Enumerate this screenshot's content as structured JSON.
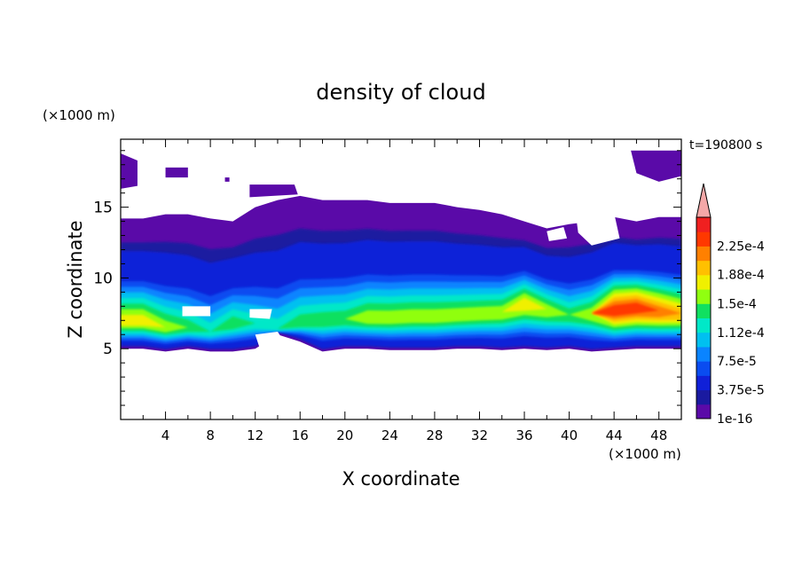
{
  "chart_data": {
    "type": "heatmap",
    "title": "density of cloud",
    "time_label": "t=190800 s",
    "xlabel": "X coordinate",
    "ylabel": "Z coordinate",
    "x_unit": "(×1000 m)",
    "y_unit": "(×1000 m)",
    "xlim": [
      0,
      50
    ],
    "ylim": [
      0,
      19.8
    ],
    "x_ticks": [
      4,
      8,
      12,
      16,
      20,
      24,
      28,
      32,
      36,
      40,
      44,
      48
    ],
    "y_ticks": [
      5,
      10,
      15
    ],
    "grid": false,
    "colorbar": {
      "labels": [
        "2.25e-4",
        "1.88e-4",
        "1.5e-4",
        "1.12e-4",
        "7.5e-5",
        "3.75e-5",
        "1e-16"
      ],
      "label_levels": [
        0.000225,
        0.000188,
        0.00015,
        0.000112,
        7.5e-05,
        3.75e-05,
        1e-16
      ],
      "levels": [
        1e-16,
        1.875e-05,
        3.75e-05,
        5.625e-05,
        7.5e-05,
        9.375e-05,
        0.0001125,
        0.00013125,
        0.00015,
        0.00016875,
        0.0001875,
        0.00020625,
        0.000225,
        0.00024375
      ],
      "colors": [
        "#5a0aa8",
        "#1a1aa0",
        "#1020d8",
        "#0a4cf0",
        "#0a84ff",
        "#00c0f0",
        "#00e8c8",
        "#10e060",
        "#90ff10",
        "#f0f000",
        "#ffc000",
        "#ff8000",
        "#ff3800",
        "#f02020"
      ],
      "extend_color": "#f4a8a8"
    },
    "field": {
      "description_levels": "cloud density contour bands by x (×1000 m)",
      "x": [
        0,
        2,
        4,
        6,
        8,
        10,
        12,
        14,
        16,
        18,
        20,
        22,
        24,
        26,
        28,
        30,
        32,
        34,
        36,
        38,
        40,
        42,
        44,
        46,
        48,
        50
      ],
      "cloud_base": [
        5.0,
        5.0,
        4.8,
        5.0,
        4.8,
        4.8,
        5.0,
        6.0,
        5.5,
        4.8,
        5.0,
        5.0,
        4.9,
        4.9,
        4.9,
        5.0,
        5.0,
        4.9,
        5.0,
        4.9,
        5.0,
        4.8,
        4.9,
        5.0,
        5.0,
        5.0
      ],
      "cloud_top": [
        14.2,
        14.2,
        14.5,
        14.5,
        14.2,
        14.0,
        15.0,
        15.5,
        15.8,
        15.5,
        15.5,
        15.5,
        15.3,
        15.3,
        15.3,
        15.0,
        14.8,
        14.5,
        14.0,
        13.5,
        13.8,
        14.0,
        14.3,
        14.0,
        14.3,
        14.3
      ],
      "core_center": [
        7.0,
        7.0,
        6.5,
        6.5,
        6.2,
        6.8,
        6.8,
        6.4,
        6.8,
        7.0,
        7.1,
        7.2,
        7.2,
        7.3,
        7.3,
        7.4,
        7.5,
        7.6,
        8.3,
        7.8,
        7.4,
        7.5,
        7.8,
        8.0,
        7.7,
        7.5
      ],
      "peak_level_index": [
        9,
        9,
        8,
        7,
        6,
        7,
        6,
        6,
        7,
        7,
        7,
        8,
        8,
        8,
        8,
        8,
        8,
        8,
        9,
        8,
        7,
        8,
        12,
        12,
        11,
        10
      ]
    }
  }
}
